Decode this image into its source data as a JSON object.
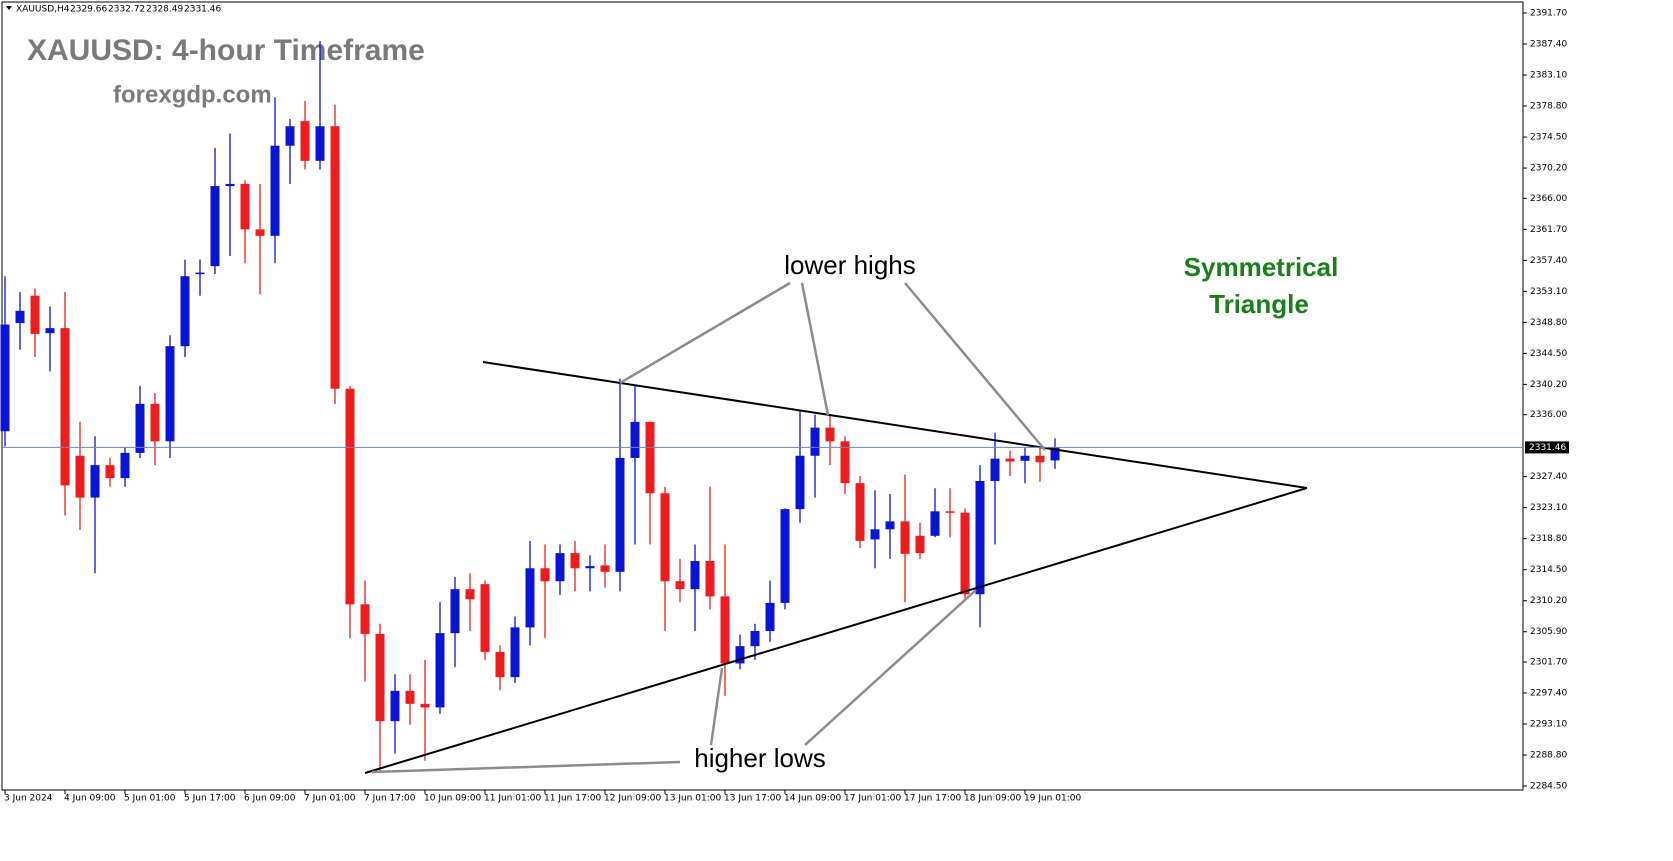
{
  "chart_data": {
    "type": "candlestick",
    "symbol": "XAUUSD,H4",
    "title": "XAUUSD: 4-hour Timeframe",
    "subtitle": "forexgdp.com",
    "annotations": {
      "lower_highs": "lower highs",
      "higher_lows": "higher lows",
      "pattern": [
        "Symmetrical",
        "Triangle"
      ]
    },
    "up_color": "#0a14d8",
    "down_color": "#ee1c1c",
    "categories": [
      "3 Jun 2024",
      null,
      null,
      null,
      "4 Jun 09:00",
      null,
      null,
      null,
      "5 Jun 01:00",
      null,
      null,
      null,
      "5 Jun 17:00",
      null,
      null,
      null,
      "6 Jun 09:00",
      null,
      null,
      null,
      "7 Jun 01:00",
      null,
      null,
      null,
      "7 Jun 17:00",
      null,
      null,
      null,
      "10 Jun 09:00",
      null,
      null,
      null,
      "11 Jun 01:00",
      null,
      null,
      null,
      "11 Jun 17:00",
      null,
      null,
      null,
      "12 Jun 09:00",
      null,
      null,
      null,
      "13 Jun 01:00",
      null,
      null,
      null,
      "13 Jun 17:00",
      null,
      null,
      null,
      "14 Jun 09:00",
      null,
      null,
      null,
      "17 Jun 01:00",
      null,
      null,
      null,
      "17 Jun 17:00",
      null,
      null,
      null,
      "18 Jun 09:00",
      null,
      null,
      null,
      "19 Jun 01:00",
      null,
      null
    ],
    "open": [
      2333.7,
      2348.7,
      2352.5,
      2347.3,
      2348,
      2330.3,
      2324.5,
      2329,
      2327.2,
      2330.7,
      2337.5,
      2332.3,
      2345.5,
      2355.5,
      2356.6,
      2367.7,
      2368,
      2361.7,
      2360.8,
      2373.3,
      2376.7,
      2371.2,
      2376,
      2339.6,
      2309.7,
      2305.6,
      2293.5,
      2297.7,
      2295.9,
      2295.4,
      2305.7,
      2311.8,
      2312.5,
      2303.1,
      2299.6,
      2306.5,
      2314.7,
      2312.9,
      2316.8,
      2314.7,
      2315.1,
      2314.2,
      2330,
      2335,
      2325.1,
      2312.9,
      2311.8,
      2315.7,
      2310.8,
      2301.5,
      2303.9,
      2306,
      2309.9,
      2322.9,
      2330.3,
      2334.2,
      2332.3,
      2326.5,
      2318.7,
      2320.1,
      2321.2,
      2319.2,
      2319.2,
      2322.6,
      2322.4,
      2311.1,
      2326.8,
      2329.9,
      2329.6,
      2330.3,
      2329.66
    ],
    "high": [
      2355.2,
      2353,
      2353.5,
      2351,
      2353,
      2335,
      2333,
      2330,
      2331.5,
      2340,
      2339,
      2347,
      2357.5,
      2357.5,
      2373,
      2375,
      2368.5,
      2368,
      2380,
      2377,
      2379.5,
      2387.8,
      2379,
      2340,
      2313,
      2307,
      2300,
      2300,
      2302,
      2310,
      2313.5,
      2314,
      2313,
      2304,
      2308,
      2318.5,
      2318,
      2318,
      2318.5,
      2316.5,
      2318,
      2341,
      2340,
      2335,
      2326,
      2316,
      2318,
      2326,
      2318,
      2305.5,
      2307,
      2313,
      2323,
      2336.5,
      2336,
      2336,
      2333,
      2327.5,
      2325.5,
      2325,
      2327.7,
      2321,
      2325.8,
      2325.8,
      2323,
      2329,
      2333.5,
      2331,
      2331.5,
      2331.5,
      2332.72
    ],
    "low": [
      2331.6,
      2345,
      2344,
      2342,
      2322,
      2320,
      2314,
      2326,
      2326,
      2330,
      2329,
      2330,
      2344,
      2352.5,
      2355.5,
      2358,
      2357,
      2352.7,
      2357,
      2368,
      2370,
      2370,
      2337.5,
      2305,
      2299,
      2286.5,
      2289,
      2293,
      2288,
      2294.5,
      2301,
      2306,
      2302,
      2297.8,
      2298.8,
      2304,
      2305,
      2311,
      2311.5,
      2311.5,
      2312,
      2311.5,
      2318,
      2318,
      2306,
      2310,
      2306,
      2309,
      2297,
      2300.7,
      2302,
      2304.5,
      2309,
      2321,
      2324.5,
      2329,
      2325,
      2317.5,
      2314.7,
      2316,
      2310,
      2316,
      2319,
      2319,
      2310.5,
      2306.5,
      2318,
      2327.5,
      2326.5,
      2326.7,
      2328.49
    ],
    "close": [
      2348.5,
      2350.4,
      2347.2,
      2348,
      2326.2,
      2324.5,
      2329,
      2327.2,
      2330.7,
      2337.5,
      2332.3,
      2345.5,
      2355.2,
      2355.7,
      2367.7,
      2368,
      2361.7,
      2360.8,
      2373.3,
      2376,
      2371.2,
      2376,
      2339.6,
      2309.7,
      2305.6,
      2293.5,
      2297.7,
      2295.9,
      2295.4,
      2305.7,
      2311.8,
      2310.4,
      2303.1,
      2299.6,
      2306.5,
      2314.7,
      2312.9,
      2316.8,
      2314.7,
      2315,
      2314.2,
      2330,
      2335,
      2325.1,
      2312.9,
      2311.8,
      2315.7,
      2310.8,
      2301.5,
      2303.9,
      2306,
      2309.9,
      2322.9,
      2330.3,
      2334.2,
      2332.3,
      2326.5,
      2318.5,
      2320.1,
      2321.2,
      2316.7,
      2316.8,
      2322.6,
      2322.4,
      2311.1,
      2326.8,
      2329.9,
      2329.5,
      2330.3,
      2329.4,
      2331.46
    ],
    "ylim": [
      2283.95,
      2392.95
    ],
    "yticks": [
      {
        "value": 2391.7,
        "label": "2391.70"
      },
      {
        "value": 2387.4,
        "label": "2387.40"
      },
      {
        "value": 2383.1,
        "label": "2383.10"
      },
      {
        "value": 2378.8,
        "label": "2378.80"
      },
      {
        "value": 2374.5,
        "label": "2374.50"
      },
      {
        "value": 2370.2,
        "label": "2370.20"
      },
      {
        "value": 2366,
        "label": "2366.00"
      },
      {
        "value": 2361.7,
        "label": "2361.70"
      },
      {
        "value": 2357.4,
        "label": "2357.40"
      },
      {
        "value": 2353.1,
        "label": "2353.10"
      },
      {
        "value": 2348.8,
        "label": "2348.80"
      },
      {
        "value": 2344.5,
        "label": "2344.50"
      },
      {
        "value": 2340.2,
        "label": "2340.20"
      },
      {
        "value": 2336,
        "label": "2336.00"
      },
      {
        "value": 2327.4,
        "label": "2327.40"
      },
      {
        "value": 2323.1,
        "label": "2323.10"
      },
      {
        "value": 2318.8,
        "label": "2318.80"
      },
      {
        "value": 2314.5,
        "label": "2314.50"
      },
      {
        "value": 2310.2,
        "label": "2310.20"
      },
      {
        "value": 2305.9,
        "label": "2305.90"
      },
      {
        "value": 2301.7,
        "label": "2301.70"
      },
      {
        "value": 2297.4,
        "label": "2297.40"
      },
      {
        "value": 2293.1,
        "label": "2293.10"
      },
      {
        "value": 2288.8,
        "label": "2288.80"
      },
      {
        "value": 2284.5,
        "label": "2284.50"
      }
    ],
    "grid": false
  }
}
